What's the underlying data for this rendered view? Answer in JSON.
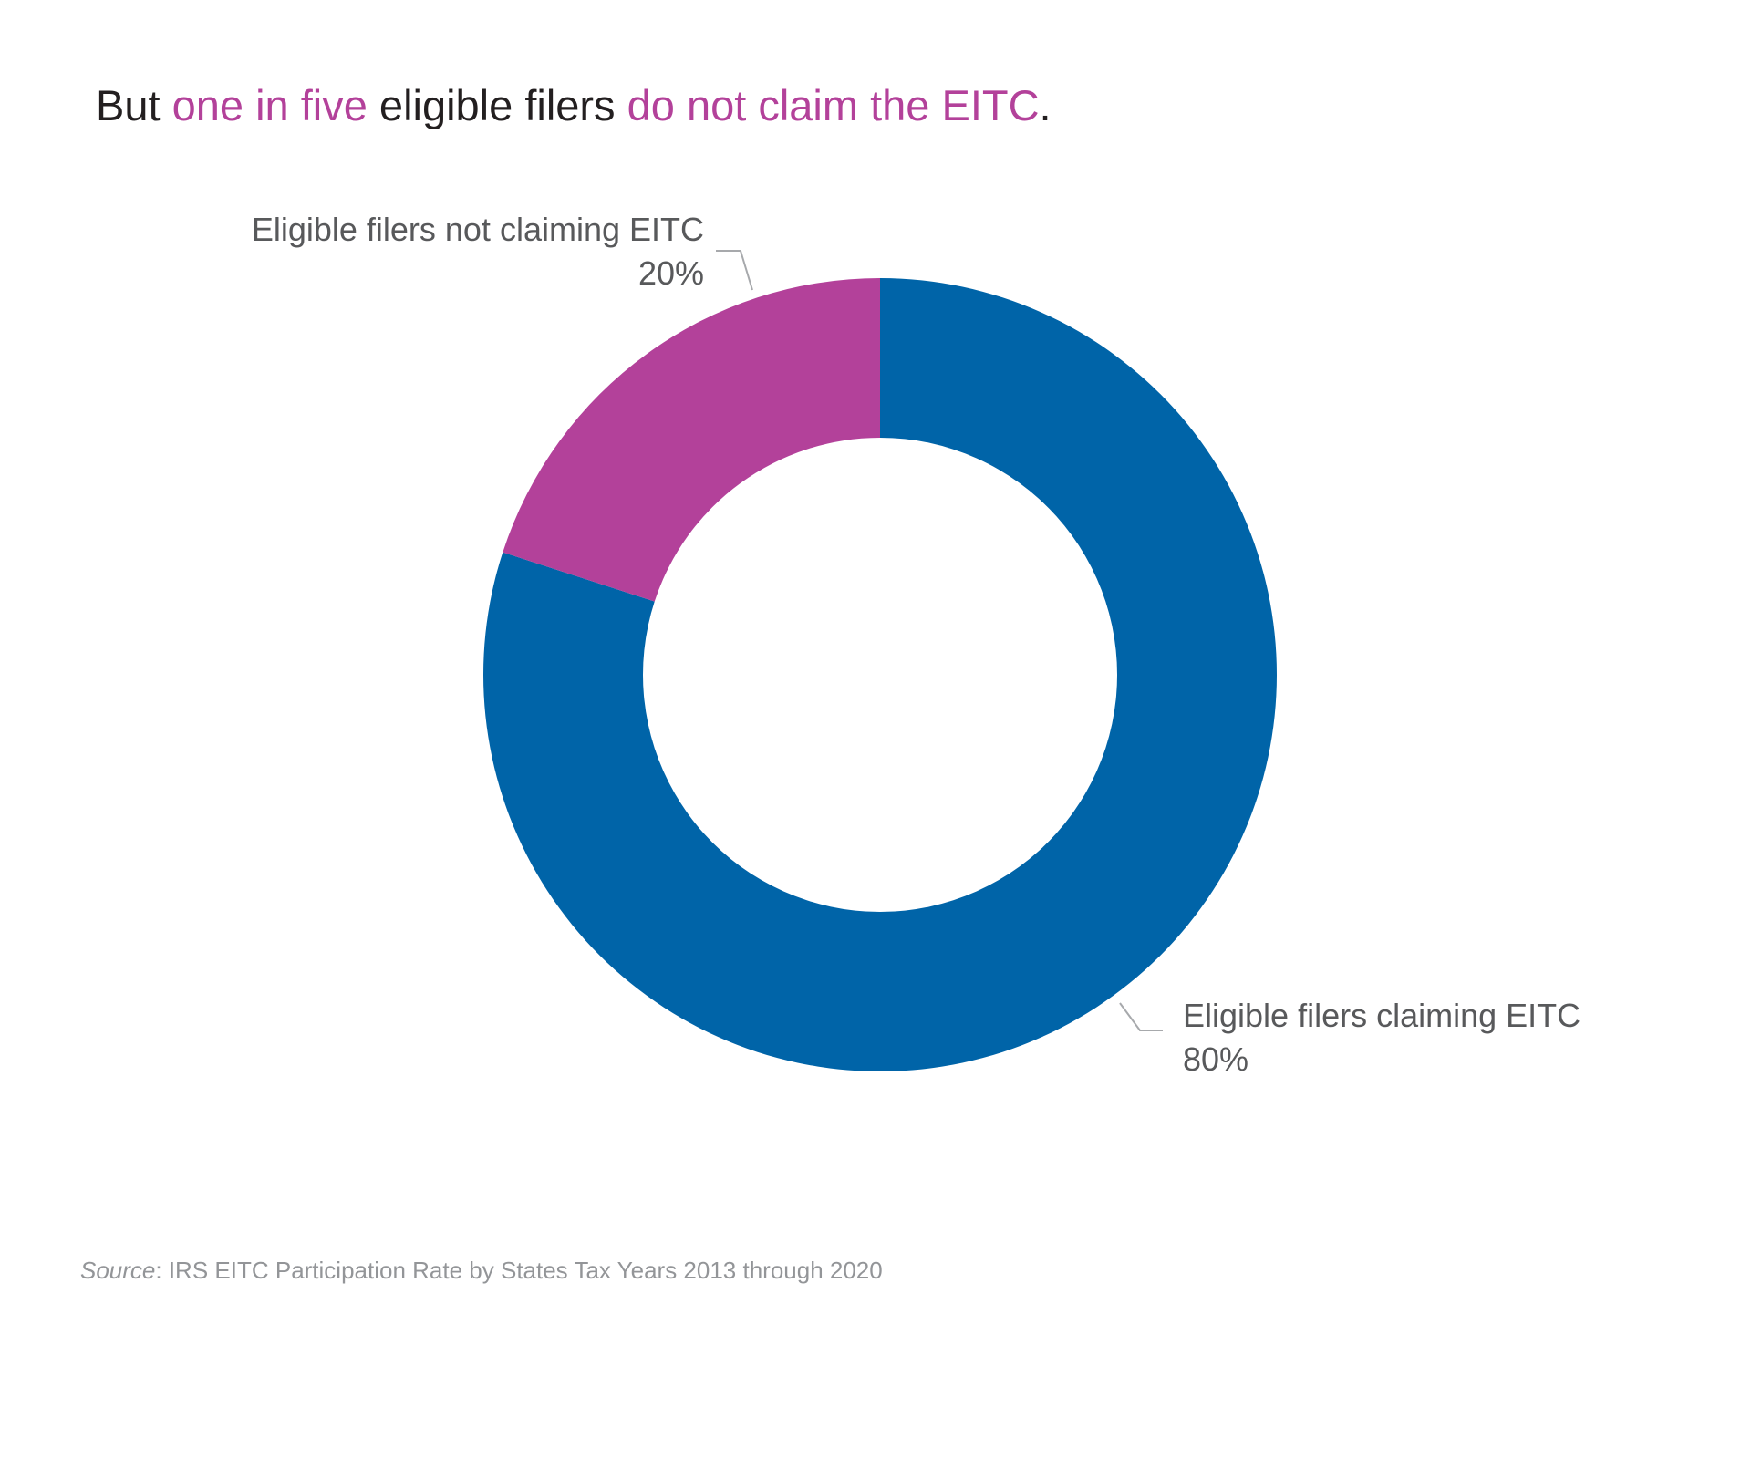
{
  "title": {
    "part1": "But ",
    "highlight1": "one in five",
    "part2": " eligible filers ",
    "highlight2": "do not claim the EITC",
    "part3": "."
  },
  "colors": {
    "title_text": "#231f20",
    "highlight": "#b3419a",
    "claiming_slice": "#0064a8",
    "not_claiming_slice": "#b3419a",
    "label_text": "#58595b",
    "leader_line": "#a7a9ac",
    "source_text": "#939598"
  },
  "chart_data": {
    "type": "pie",
    "variant": "donut",
    "slices": [
      {
        "label": "Eligible filers claiming EITC",
        "value": 80,
        "value_label": "80%",
        "color": "#0064a8"
      },
      {
        "label": "Eligible filers not claiming EITC",
        "value": 20,
        "value_label": "20%",
        "color": "#b3419a"
      }
    ],
    "unit": "%",
    "legend": "none (direct labels with leader lines)"
  },
  "source": {
    "prefix": "Source",
    "text": ": IRS EITC Participation Rate by States Tax Years 2013 through 2020"
  }
}
